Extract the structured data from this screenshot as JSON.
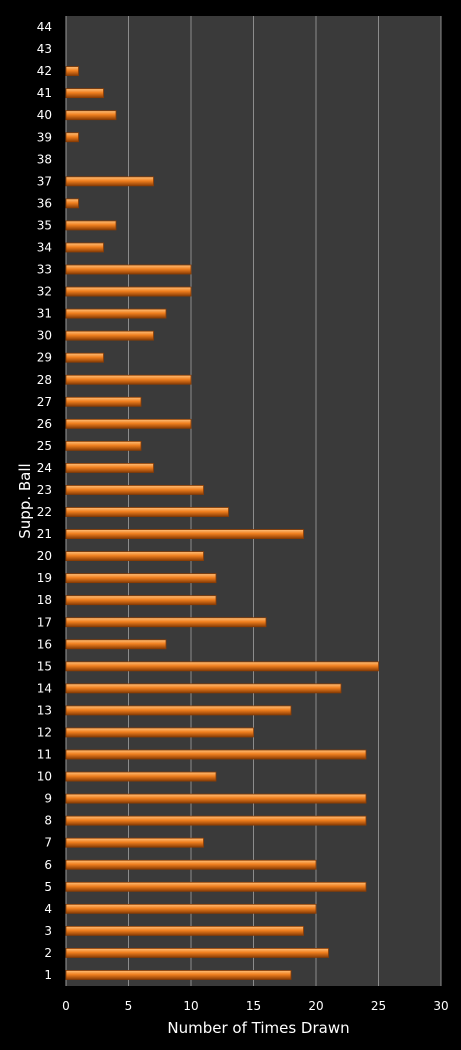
{
  "chart_data": {
    "type": "bar",
    "orientation": "horizontal",
    "xlabel": "Number of Times Drawn",
    "ylabel": "Supp. Ball",
    "xlim": [
      0,
      30
    ],
    "x_ticks": [
      0,
      5,
      10,
      15,
      20,
      25,
      30
    ],
    "grid": "vertical",
    "colors": {
      "background": "#000000",
      "plot_area": "#3a3a3a",
      "bar": "#f07f1e",
      "bar_highlight": "#ffc07a",
      "bar_edge": "#8a3d05",
      "grid": "#8c8c8c",
      "text": "#ffffff"
    },
    "categories": [
      "1",
      "2",
      "3",
      "4",
      "5",
      "6",
      "7",
      "8",
      "9",
      "10",
      "11",
      "12",
      "13",
      "14",
      "15",
      "16",
      "17",
      "18",
      "19",
      "20",
      "21",
      "22",
      "23",
      "24",
      "25",
      "26",
      "27",
      "28",
      "29",
      "30",
      "31",
      "32",
      "33",
      "34",
      "35",
      "36",
      "37",
      "38",
      "39",
      "40",
      "41",
      "42",
      "43",
      "44"
    ],
    "values": [
      18,
      21,
      19,
      20,
      24,
      20,
      11,
      24,
      24,
      12,
      24,
      15,
      18,
      22,
      25,
      8,
      16,
      12,
      12,
      11,
      19,
      13,
      11,
      7,
      6,
      10,
      6,
      10,
      3,
      7,
      8,
      10,
      10,
      3,
      4,
      1,
      7,
      0,
      1,
      4,
      3,
      1,
      0,
      0
    ]
  }
}
